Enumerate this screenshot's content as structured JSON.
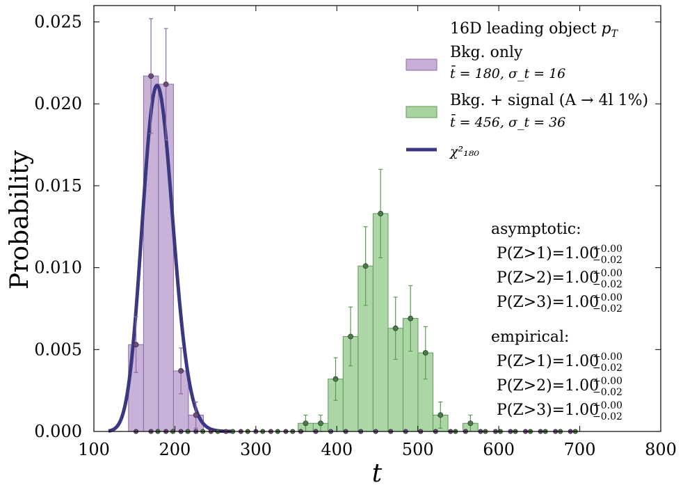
{
  "chart_data": {
    "type": "bar",
    "xlabel": "t",
    "ylabel": "Probability",
    "xlim": [
      100,
      800
    ],
    "ylim": [
      0,
      0.026
    ],
    "x_ticks": [
      "100",
      "200",
      "300",
      "400",
      "500",
      "600",
      "700",
      "800"
    ],
    "y_ticks": [
      "0.000",
      "0.005",
      "0.010",
      "0.015",
      "0.020",
      "0.025"
    ],
    "grid": false,
    "legend": {
      "position": "top-right",
      "title": "16D leading object p_T",
      "entries": [
        {
          "label": "Bkg. only",
          "sub": "t̄ = 180, σ_t = 16"
        },
        {
          "label": "Bkg. + signal (A → 4l 1%)",
          "sub": "t̄ = 456, σ_t = 36"
        },
        {
          "label": "χ²₁₈₀"
        }
      ]
    },
    "colors": {
      "bkg_fill": "#c6aed6",
      "bkg_edge": "#8a6aa6",
      "bkg_marker": "#6d4b7d",
      "sig_fill": "#a8d4a0",
      "sig_edge": "#5c9a55",
      "sig_marker": "#4a7a47",
      "chi2_line": "#3b3882"
    },
    "series": [
      {
        "name": "Bkg. only",
        "bin_width": 18.5,
        "bins": [
          {
            "x": 152.0,
            "y": 0.0053,
            "err": 0.0017
          },
          {
            "x": 170.5,
            "y": 0.0217,
            "err": 0.0035
          },
          {
            "x": 189.0,
            "y": 0.0212,
            "err": 0.0034
          },
          {
            "x": 207.5,
            "y": 0.0037,
            "err": 0.0014
          },
          {
            "x": 226.0,
            "y": 0.001,
            "err": 0.0008
          }
        ],
        "zero_points": [
          152,
          170.5,
          189,
          207.5,
          226,
          244.5,
          263,
          281.5,
          300,
          318.5,
          337,
          355.5,
          374,
          392.5,
          411,
          429.5,
          448,
          466.5,
          485,
          503.5,
          522,
          540.5,
          559,
          577.5,
          596,
          614.5,
          633,
          651.5,
          670,
          688.5
        ]
      },
      {
        "name": "Bkg. + signal (A → 4l 1%)",
        "bin_width": 18.5,
        "bins": [
          {
            "x": 361.5,
            "y": 0.0005,
            "err": 0.0005
          },
          {
            "x": 380.0,
            "y": 0.0005,
            "err": 0.0005
          },
          {
            "x": 398.5,
            "y": 0.0032,
            "err": 0.0013
          },
          {
            "x": 417.0,
            "y": 0.0058,
            "err": 0.0018
          },
          {
            "x": 435.5,
            "y": 0.0101,
            "err": 0.0024
          },
          {
            "x": 454.0,
            "y": 0.0133,
            "err": 0.0027
          },
          {
            "x": 472.5,
            "y": 0.0063,
            "err": 0.0019
          },
          {
            "x": 491.0,
            "y": 0.0069,
            "err": 0.002
          },
          {
            "x": 509.5,
            "y": 0.0048,
            "err": 0.0016
          },
          {
            "x": 528.0,
            "y": 0.001,
            "err": 0.0008
          },
          {
            "x": 565.0,
            "y": 0.0005,
            "err": 0.0005
          }
        ],
        "zero_points": [
          179,
          197.5,
          216,
          234.5,
          253,
          271.5,
          290,
          308.5,
          327,
          345.5,
          546.5,
          583.5,
          602,
          620.5,
          639,
          657.5,
          676,
          694.5
        ]
      },
      {
        "name": "χ²₁₈₀",
        "type": "line",
        "dof": 180,
        "x_range": [
          118,
          270
        ]
      }
    ],
    "annotations": {
      "asymptotic": {
        "title": "asymptotic:",
        "lines": [
          {
            "label": "P(Z>1)=",
            "value": "1.00",
            "up": "+0.00",
            "down": "−0.02"
          },
          {
            "label": "P(Z>2)=",
            "value": "1.00",
            "up": "+0.00",
            "down": "−0.02"
          },
          {
            "label": "P(Z>3)=",
            "value": "1.00",
            "up": "+0.00",
            "down": "−0.02"
          }
        ]
      },
      "empirical": {
        "title": "empirical:",
        "lines": [
          {
            "label": "P(Z>1)=",
            "value": "1.00",
            "up": "+0.00",
            "down": "−0.02"
          },
          {
            "label": "P(Z>2)=",
            "value": "1.00",
            "up": "+0.00",
            "down": "−0.02"
          },
          {
            "label": "P(Z>3)=",
            "value": "1.00",
            "up": "+0.00",
            "down": "−0.02"
          }
        ]
      }
    }
  }
}
